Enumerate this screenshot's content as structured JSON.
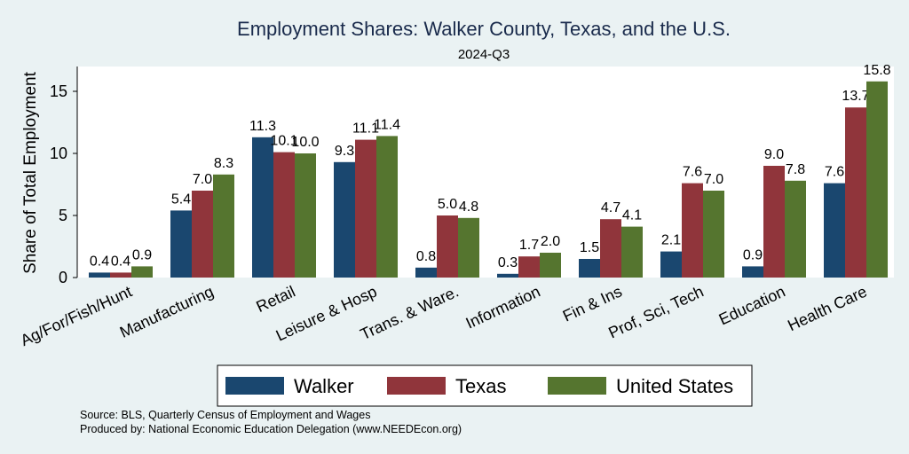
{
  "chart_data": {
    "type": "bar",
    "title": "Employment Shares: Walker County, Texas, and the U.S.",
    "subtitle": "2024-Q3",
    "ylabel": "Share of Total Employment",
    "xlabel": "",
    "ylim": [
      0,
      17
    ],
    "yticks": [
      0,
      5,
      10,
      15
    ],
    "grid": false,
    "legend_position": "bottom",
    "categories": [
      "Ag/For/Fish/Hunt",
      "Manufacturing",
      "Retail",
      "Leisure & Hosp",
      "Trans. & Ware.",
      "Information",
      "Fin & Ins",
      "Prof, Sci, Tech",
      "Education",
      "Health Care"
    ],
    "series": [
      {
        "name": "Walker",
        "color": "#1a476f",
        "values": [
          0.4,
          5.4,
          11.3,
          9.3,
          0.8,
          0.3,
          1.5,
          2.1,
          0.9,
          7.6
        ]
      },
      {
        "name": "Texas",
        "color": "#90353b",
        "values": [
          0.4,
          7.0,
          10.1,
          11.1,
          5.0,
          1.7,
          4.7,
          7.6,
          9.0,
          13.7
        ]
      },
      {
        "name": "United States",
        "color": "#55752f",
        "values": [
          0.9,
          8.3,
          10.0,
          11.4,
          4.8,
          2.0,
          4.1,
          7.0,
          7.8,
          15.8
        ]
      }
    ],
    "notes": [
      "Source: BLS, Quarterly Census of Employment and Wages",
      "Produced by: National Economic Education Delegation (www.NEEDEcon.org)"
    ]
  }
}
